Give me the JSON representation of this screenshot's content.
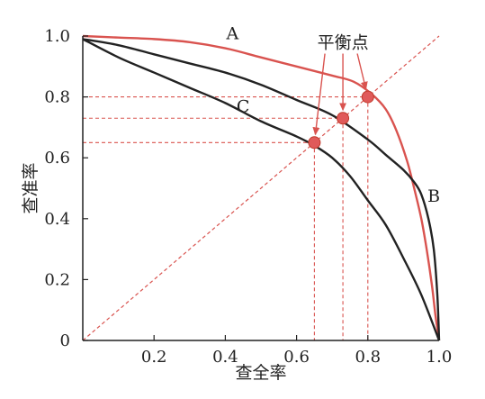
{
  "chart_data": {
    "type": "line",
    "xlabel": "查全率",
    "ylabel": "查准率",
    "xlim": [
      0,
      1
    ],
    "ylim": [
      0,
      1
    ],
    "xticks": [
      "0.2",
      "0.4",
      "0.6",
      "0.8",
      "1.0"
    ],
    "yticks": [
      "0",
      "0.2",
      "0.4",
      "0.6",
      "0.8",
      "1.0"
    ],
    "grid": false,
    "series": [
      {
        "name": "A",
        "color": "#d9534f",
        "x": [
          0,
          0.1,
          0.2,
          0.3,
          0.4,
          0.5,
          0.6,
          0.7,
          0.76,
          0.81,
          0.85,
          0.88,
          0.91,
          0.93,
          0.95,
          0.965,
          0.98,
          0.99,
          1.0
        ],
        "y": [
          1.0,
          0.995,
          0.99,
          0.98,
          0.96,
          0.93,
          0.9,
          0.87,
          0.85,
          0.81,
          0.76,
          0.69,
          0.59,
          0.5,
          0.4,
          0.3,
          0.18,
          0.08,
          0
        ]
      },
      {
        "name": "B",
        "color": "#222222",
        "x": [
          0,
          0.1,
          0.2,
          0.3,
          0.4,
          0.5,
          0.6,
          0.7,
          0.8,
          0.85,
          0.9,
          0.93,
          0.95,
          0.97,
          0.985,
          0.995,
          1.0
        ],
        "y": [
          0.99,
          0.97,
          0.94,
          0.91,
          0.88,
          0.84,
          0.79,
          0.74,
          0.66,
          0.61,
          0.56,
          0.52,
          0.48,
          0.4,
          0.3,
          0.15,
          0
        ]
      },
      {
        "name": "C",
        "color": "#222222",
        "x": [
          0,
          0.1,
          0.2,
          0.3,
          0.4,
          0.5,
          0.6,
          0.65,
          0.7,
          0.75,
          0.8,
          0.85,
          0.9,
          0.95,
          1.0
        ],
        "y": [
          0.99,
          0.93,
          0.88,
          0.83,
          0.78,
          0.72,
          0.67,
          0.64,
          0.6,
          0.54,
          0.46,
          0.38,
          0.27,
          0.15,
          0
        ]
      }
    ],
    "reference_line": {
      "x": [
        0,
        1
      ],
      "y": [
        0,
        1
      ],
      "color": "#d9534f",
      "style": "dashed"
    },
    "break_even_points": [
      {
        "x": 0.65,
        "y": 0.65
      },
      {
        "x": 0.73,
        "y": 0.73
      },
      {
        "x": 0.8,
        "y": 0.8
      }
    ],
    "curve_labels": [
      {
        "text": "A",
        "x": 0.42,
        "y": 0.99
      },
      {
        "text": "B",
        "x": 0.985,
        "y": 0.455
      },
      {
        "text": "C",
        "x": 0.45,
        "y": 0.75
      }
    ],
    "annotation": {
      "text": "平衡点",
      "x": 0.73,
      "y": 0.96
    },
    "colors": {
      "accent": "#d9534f",
      "axis": "#222222",
      "point": "#e05a5a"
    }
  }
}
